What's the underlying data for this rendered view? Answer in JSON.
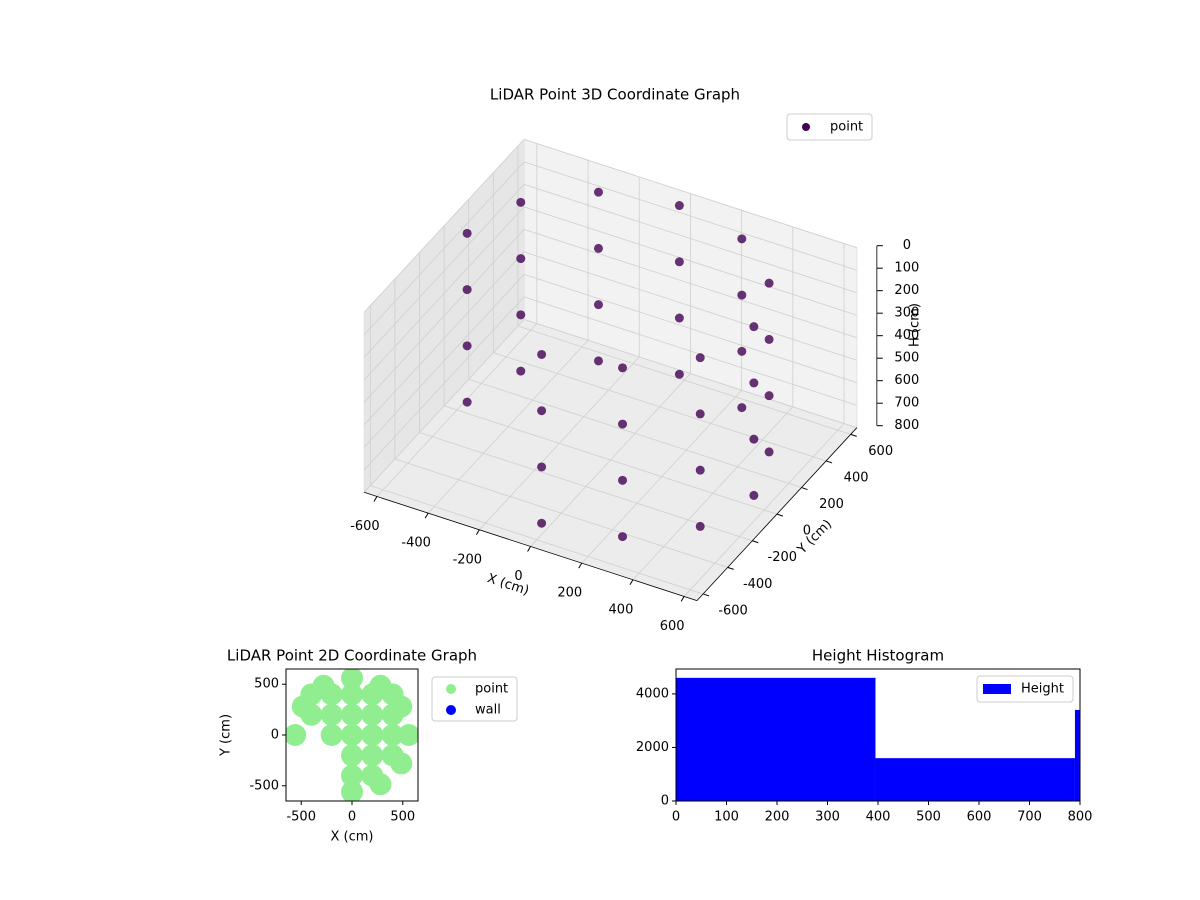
{
  "chart_data": [
    {
      "type": "scatter3d",
      "title": "LiDAR Point 3D Coordinate Graph",
      "xlabel": "X (cm)",
      "ylabel": "Y (cm)",
      "zlabel": "H (cm)",
      "xlim": [
        -650,
        650
      ],
      "ylim": [
        -650,
        650
      ],
      "zlim": [
        0,
        800
      ],
      "z_inverted": true,
      "xticks": [
        -600,
        -400,
        -200,
        0,
        200,
        400,
        600
      ],
      "yticks": [
        -600,
        -400,
        -200,
        0,
        200,
        400,
        600
      ],
      "zticks": [
        0,
        100,
        200,
        300,
        400,
        500,
        600,
        700,
        800
      ],
      "legend": "upper right",
      "series": [
        {
          "name": "point",
          "color": "#440154",
          "x": [
            0,
            280,
            485,
            560,
            485,
            280,
            0,
            -280,
            -485,
            -560,
            0,
            280,
            485,
            560,
            485,
            280,
            0,
            -280,
            -485,
            -560,
            0,
            280,
            485,
            560,
            485,
            280,
            0,
            -280,
            -485,
            -560,
            0,
            280,
            485,
            560,
            485,
            280,
            0,
            -280,
            -485,
            -560
          ],
          "y": [
            -560,
            -485,
            -280,
            0,
            280,
            485,
            560,
            485,
            280,
            0,
            -560,
            -485,
            -280,
            0,
            280,
            485,
            560,
            485,
            280,
            0,
            -560,
            -485,
            -280,
            0,
            280,
            485,
            560,
            485,
            280,
            0,
            -560,
            -485,
            -280,
            0,
            280,
            485,
            560,
            485,
            280,
            0
          ],
          "z": [
            0,
            0,
            0,
            0,
            0,
            0,
            0,
            0,
            0,
            0,
            250,
            250,
            250,
            250,
            250,
            250,
            250,
            250,
            250,
            250,
            500,
            500,
            500,
            500,
            500,
            500,
            500,
            500,
            500,
            500,
            750,
            750,
            750,
            750,
            750,
            750,
            750,
            750,
            750,
            750
          ]
        }
      ]
    },
    {
      "type": "scatter",
      "title": "LiDAR Point 2D Coordinate Graph",
      "xlabel": "X (cm)",
      "ylabel": "Y (cm)",
      "xlim": [
        -650,
        650
      ],
      "ylim": [
        -650,
        650
      ],
      "xticks": [
        -500,
        0,
        500
      ],
      "yticks": [
        -500,
        0,
        500
      ],
      "legend": "outside right",
      "series": [
        {
          "name": "point",
          "color": "#90ee90",
          "x": [
            0,
            280,
            485,
            560,
            485,
            280,
            0,
            -280,
            -485,
            -560,
            0,
            200,
            400,
            0,
            200,
            0,
            200,
            400,
            -200,
            -400,
            -200,
            200,
            400,
            0,
            200,
            0,
            -200,
            400,
            -400
          ],
          "y": [
            -560,
            -485,
            -280,
            0,
            280,
            485,
            560,
            485,
            280,
            0,
            0,
            0,
            0,
            200,
            200,
            400,
            400,
            200,
            200,
            200,
            400,
            -200,
            -200,
            -200,
            -400,
            -400,
            0,
            400,
            400
          ]
        },
        {
          "name": "wall",
          "color": "#0000ff",
          "x": [],
          "y": []
        }
      ]
    },
    {
      "type": "histogram",
      "title": "Height Histogram",
      "legend": "upper right",
      "bins": [
        0,
        395,
        790,
        800
      ],
      "counts": [
        4600,
        1600,
        3400
      ],
      "series_name": "Height",
      "color": "#0000ff",
      "xlim": [
        0,
        800
      ],
      "ylim": [
        0,
        4930
      ],
      "xticks": [
        0,
        100,
        200,
        300,
        400,
        500,
        600,
        700,
        800
      ],
      "yticks": [
        0,
        2000,
        4000
      ]
    }
  ]
}
